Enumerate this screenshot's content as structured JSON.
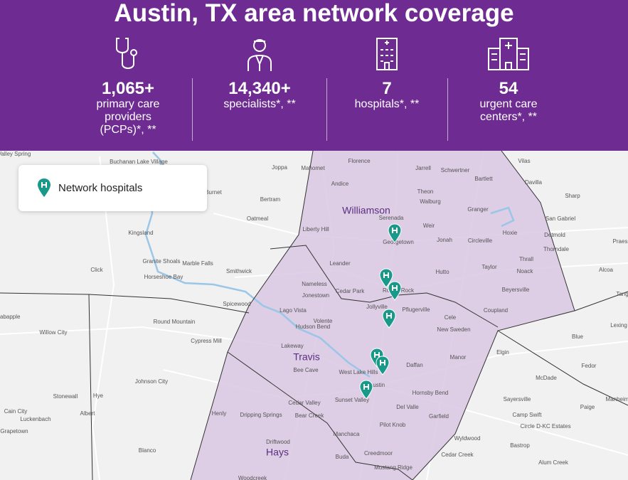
{
  "header": {
    "title": "Austin, TX area network coverage",
    "stats": [
      {
        "value": "1,065+",
        "label": "primary care providers (PCPs)*, **"
      },
      {
        "value": "14,340+",
        "label": "specialists*, **"
      },
      {
        "value": "7",
        "label": "hospitals*, **"
      },
      {
        "value": "54",
        "label": "urgent care centers*, **"
      }
    ]
  },
  "legend": {
    "label": "Network hospitals"
  },
  "map": {
    "counties": [
      "Williamson",
      "Travis",
      "Hays"
    ],
    "places": [
      "Valley Spring",
      "Buchanan Lake Village",
      "Joppa",
      "Mahomet",
      "Florence",
      "Jarrell",
      "Schwertner",
      "Bartlett",
      "Vilas",
      "Davilla",
      "Andice",
      "Theon",
      "Bertram",
      "Burnet",
      "Sharp",
      "Walburg",
      "Granger",
      "Serenada",
      "Oatmeal",
      "San Gabriel",
      "Liberty Hill",
      "Weir",
      "Hoxie",
      "Kingsland",
      "Georgetown",
      "Jonah",
      "Circleville",
      "Detmold",
      "Thorndale",
      "Leander",
      "Granite Shoals",
      "Marble Falls",
      "Thrall",
      "Click",
      "Smithwick",
      "Horseshoe Bay",
      "Hutto",
      "Taylor",
      "Noack",
      "Alcoa",
      "Nameless",
      "Cedar Park",
      "Round Rock",
      "Beyersville",
      "Jonestown",
      "Spicewood",
      "Lago Vista",
      "Jollyville",
      "Pflugerville",
      "Coupland",
      "Crabapple",
      "Round Mountain",
      "Volente",
      "Cele",
      "Hudson Bend",
      "New Sweden",
      "Blue",
      "Willow City",
      "Cypress Mill",
      "Lakeway",
      "Elgin",
      "Manor",
      "Bee Cave",
      "Fedor",
      "Johnson City",
      "Daffan",
      "West Lake Hills",
      "Austin",
      "McDade",
      "Hye",
      "Stonewall",
      "Hornsby Bend",
      "Cedar Valley",
      "Sunset Valley",
      "Del Valle",
      "Sayersville",
      "Paige",
      "Cain City",
      "Luckenbach",
      "Albert",
      "Henly",
      "Dripping Springs",
      "Bear Creek",
      "Garfield",
      "Camp Swift",
      "Circle D-KC Estates",
      "Grapetown",
      "Driftwood",
      "Pilot Knob",
      "Wyldwood",
      "Manchaca",
      "Bastrop",
      "Blanco",
      "Cedar Creek",
      "Buda",
      "Creedmoor",
      "Alum Creek",
      "Mustang Ridge",
      "Woodcreek",
      "Manheim",
      "Lexing",
      "Praes",
      "Tang"
    ]
  }
}
